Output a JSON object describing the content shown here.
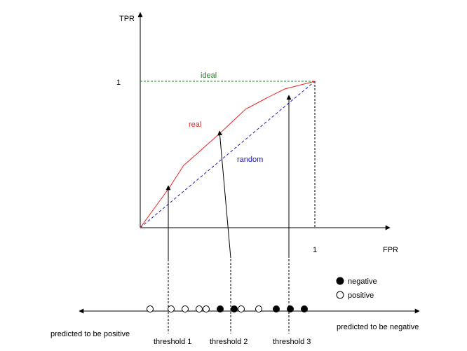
{
  "axes": {
    "y_label": "TPR",
    "x_label": "FPR",
    "y_tick": "1",
    "x_tick": "1"
  },
  "curves": {
    "ideal": {
      "label": "ideal",
      "color": "#1a8a1a"
    },
    "real": {
      "label": "real",
      "color": "#ee2222"
    },
    "random": {
      "label": "random",
      "color": "#1a1aaa"
    }
  },
  "legend": {
    "negative": "negative",
    "positive": "positive"
  },
  "number_line": {
    "left_label": "predicted to be positive",
    "right_label": "predicted to be negative",
    "points": [
      "positive",
      "positive",
      "positive",
      "positive",
      "positive",
      "negative",
      "negative",
      "positive",
      "positive",
      "negative",
      "negative",
      "negative"
    ]
  },
  "thresholds": [
    {
      "label": "threshold 1"
    },
    {
      "label": "threshold 2"
    },
    {
      "label": "threshold 3"
    }
  ],
  "colors": {
    "axis": "#000000",
    "guide": "#000000"
  }
}
